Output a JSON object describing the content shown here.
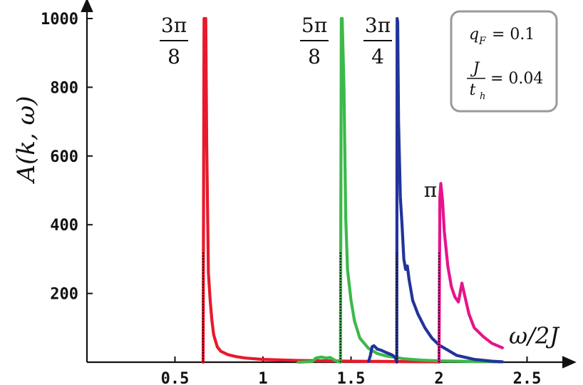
{
  "chart_data": {
    "type": "line",
    "xlabel": "ω/2J",
    "ylabel": "A(k, ω)",
    "xlim": [
      0,
      2.7
    ],
    "ylim": [
      0,
      1040
    ],
    "x_ticks": [
      0.5,
      1,
      1.5,
      2,
      2.5
    ],
    "x_tick_labels": [
      "0.5",
      "1",
      "1.5",
      "2",
      "2.5"
    ],
    "y_ticks": [
      200,
      400,
      600,
      800,
      1000
    ],
    "y_tick_labels": [
      "200",
      "400",
      "600",
      "800",
      "1000"
    ],
    "grid": false,
    "legend": {
      "placement": "top-right",
      "entries": [
        {
          "label": "q",
          "sub": "F",
          "value": "= 0.1"
        },
        {
          "num": "J",
          "den": "t",
          "den_sub": "h",
          "value": "= 0.04"
        }
      ]
    },
    "series": [
      {
        "name": "3π/8",
        "label_num": "3π",
        "label_den": "8",
        "color": "#e8192c",
        "threshold": 0.66,
        "threshold_y": 320,
        "x": [
          0.66,
          0.665,
          0.67,
          0.675,
          0.68,
          0.69,
          0.7,
          0.71,
          0.72,
          0.74,
          0.76,
          0.8,
          0.85,
          0.9,
          1.0,
          1.2,
          1.5,
          1.7,
          1.9,
          2.0
        ],
        "y": [
          0,
          1000,
          1000,
          1000,
          640,
          260,
          180,
          120,
          80,
          45,
          32,
          22,
          16,
          12,
          8,
          5,
          3,
          2,
          1.5,
          1
        ]
      },
      {
        "name": "5π/8",
        "label_num": "5π",
        "label_den": "8",
        "color": "#3cb94a",
        "threshold": 1.44,
        "threshold_y": 320,
        "x": [
          1.2,
          1.28,
          1.3,
          1.33,
          1.36,
          1.38,
          1.4,
          1.42,
          1.43,
          1.44,
          1.445,
          1.45,
          1.46,
          1.47,
          1.48,
          1.5,
          1.52,
          1.55,
          1.6,
          1.65,
          1.7,
          1.8,
          1.9,
          2.0,
          2.2,
          2.35
        ],
        "y": [
          0,
          2,
          12,
          15,
          12,
          14,
          8,
          3,
          1,
          0,
          1000,
          1000,
          800,
          420,
          270,
          180,
          120,
          70,
          40,
          25,
          18,
          10,
          6,
          4,
          2,
          1
        ]
      },
      {
        "name": "3π/4",
        "label_num": "3π",
        "label_den": "4",
        "color": "#22349a",
        "threshold": 1.76,
        "threshold_y": 320,
        "x": [
          1.6,
          1.61,
          1.62,
          1.63,
          1.65,
          1.67,
          1.7,
          1.73,
          1.75,
          1.76,
          1.762,
          1.765,
          1.77,
          1.78,
          1.79,
          1.8,
          1.81,
          1.82,
          1.83,
          1.85,
          1.88,
          1.92,
          1.96,
          2.0,
          2.05,
          2.1,
          2.2,
          2.3,
          2.36
        ],
        "y": [
          2,
          20,
          45,
          48,
          38,
          35,
          28,
          22,
          15,
          0,
          1000,
          990,
          700,
          480,
          400,
          300,
          270,
          280,
          240,
          180,
          140,
          100,
          70,
          50,
          35,
          20,
          8,
          3,
          1
        ]
      },
      {
        "name": "π",
        "label_num": "π",
        "label_den": "",
        "color": "#e6148c",
        "threshold": 2.0,
        "threshold_y": 320,
        "x": [
          2.0,
          2.005,
          2.01,
          2.02,
          2.03,
          2.05,
          2.07,
          2.09,
          2.11,
          2.13,
          2.15,
          2.17,
          2.2,
          2.25,
          2.3,
          2.36
        ],
        "y": [
          0,
          480,
          520,
          470,
          380,
          280,
          220,
          190,
          175,
          230,
          185,
          140,
          100,
          75,
          55,
          42
        ]
      }
    ]
  }
}
